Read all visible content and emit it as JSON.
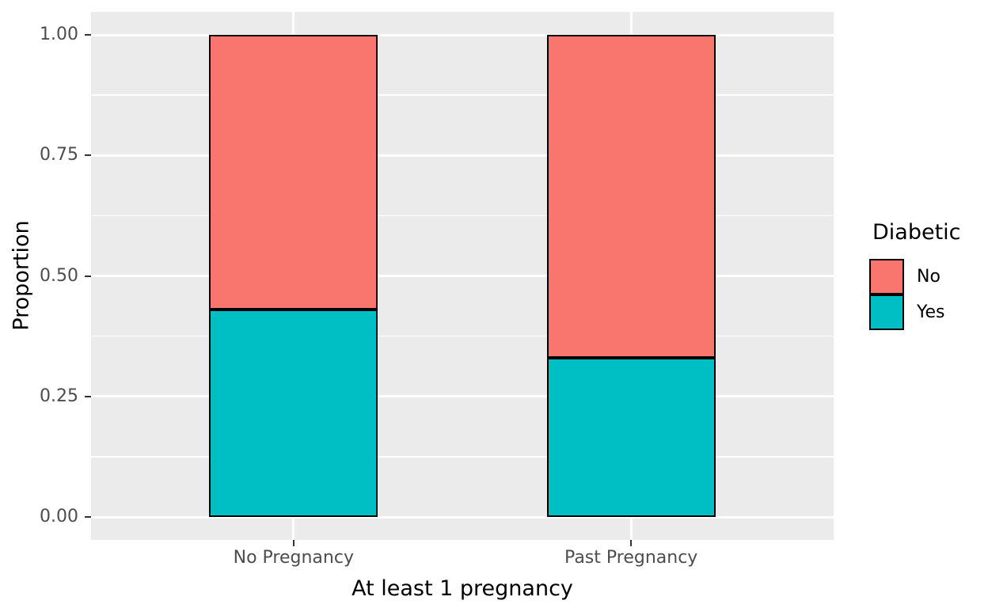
{
  "chart_data": {
    "type": "bar",
    "stacked": true,
    "xlabel": "At least 1 pregnancy",
    "ylabel": "Proportion",
    "categories": [
      "No Pregnancy",
      "Past Pregnancy"
    ],
    "series": [
      {
        "name": "Yes",
        "color": "#00BFC4",
        "values": [
          0.43,
          0.33
        ]
      },
      {
        "name": "No",
        "color": "#F8766D",
        "values": [
          0.57,
          0.67
        ]
      }
    ],
    "ylim": [
      0,
      1
    ],
    "y_ticks": [
      0,
      0.25,
      0.5,
      0.75,
      1
    ],
    "y_tick_labels": [
      "0.00",
      "0.25",
      "0.50",
      "0.75",
      "1.00"
    ],
    "grid": "major-and-minor",
    "legend": {
      "position": "right",
      "title": "Diabetic",
      "entries": [
        {
          "label": "No",
          "color": "#F8766D"
        },
        {
          "label": "Yes",
          "color": "#00BFC4"
        }
      ]
    },
    "colors": {
      "panel_background": "#EBEBEB",
      "gridline": "#FFFFFF",
      "bar_outline": "#000000",
      "tick_mark": "#333333",
      "axis_text": "#4D4D4D",
      "axis_title": "#000000"
    }
  }
}
